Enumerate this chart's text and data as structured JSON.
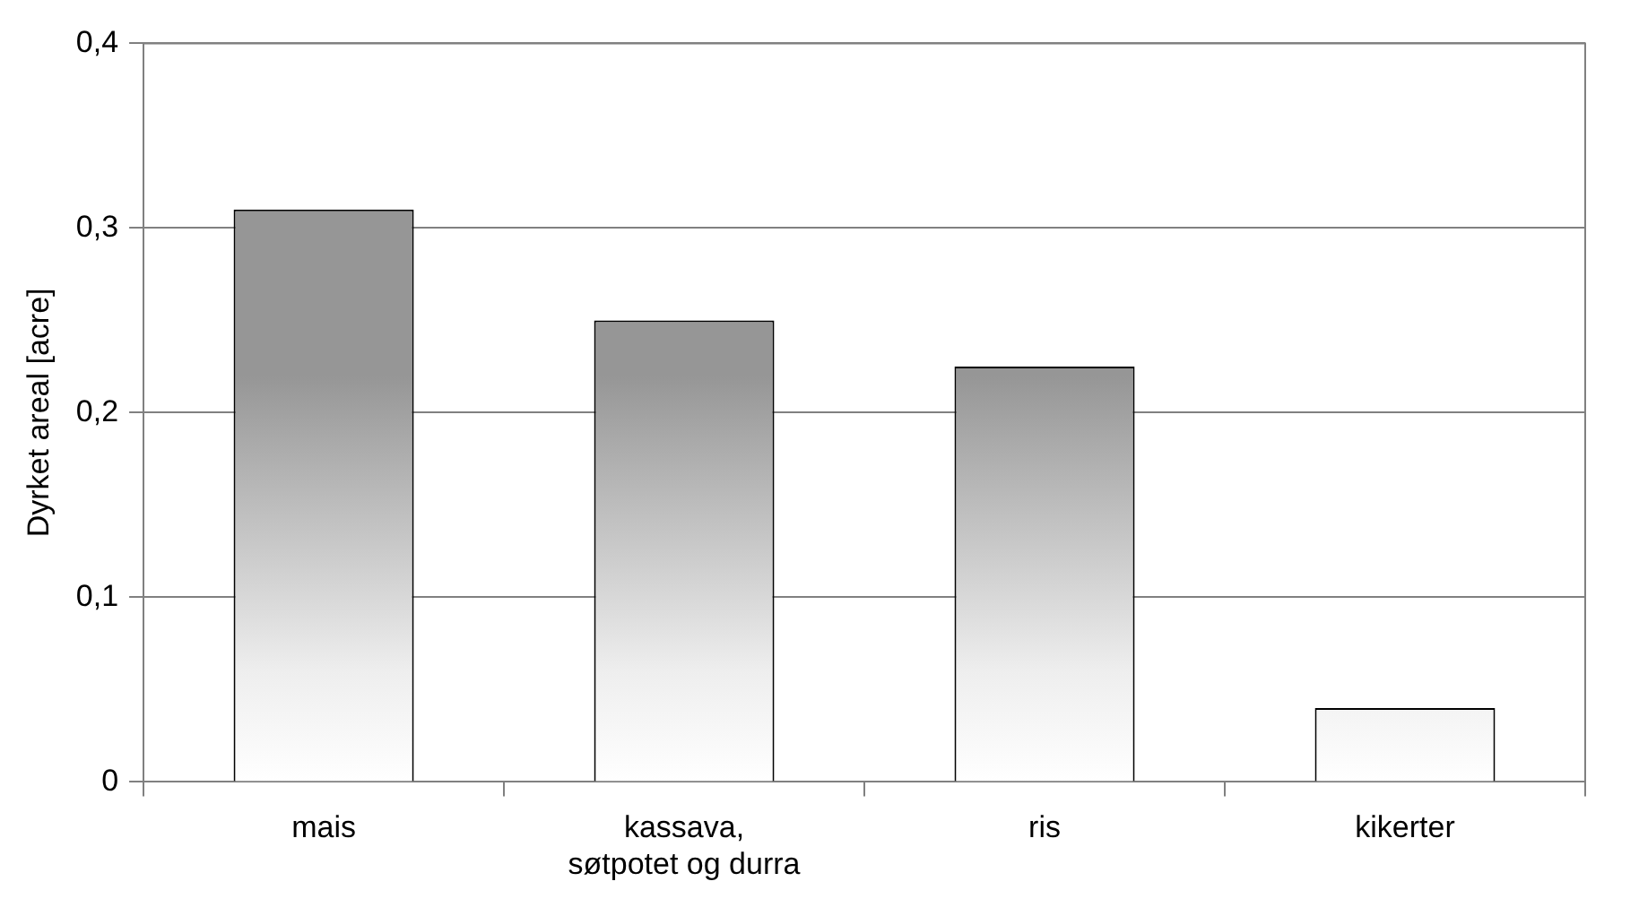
{
  "chart_data": {
    "type": "bar",
    "ylabel": "Dyrket areal [acre]",
    "categories": [
      "mais",
      "kassava, søtpotet og durra",
      "ris",
      "kikerter"
    ],
    "values": [
      0.31,
      0.25,
      0.225,
      0.04
    ],
    "color": "#969696",
    "ylim": [
      0,
      0.4
    ],
    "yticks": [
      {
        "value": 0,
        "label": "0"
      },
      {
        "value": 0.1,
        "label": "0,1"
      },
      {
        "value": 0.2,
        "label": "0,2"
      },
      {
        "value": 0.3,
        "label": "0,3"
      },
      {
        "value": 0.4,
        "label": "0,4"
      }
    ],
    "grid": "y",
    "legend": false
  }
}
